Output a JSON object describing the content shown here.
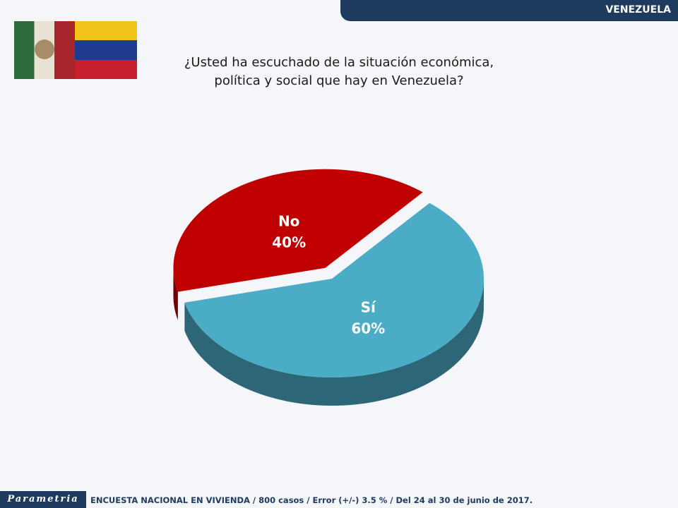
{
  "header": {
    "country": "VENEZUELA"
  },
  "footer": {
    "brand": "Parametria",
    "note": "ENCUESTA NACIONAL EN VIVIENDA / 800 casos / Error (+/-) 3.5 % / Del 24 al 30 de junio de 2017."
  },
  "chart_data": {
    "type": "pie",
    "title": "¿Usted ha escuchado de la situación económica, política y social que hay en Venezuela?",
    "categories": [
      "No",
      "Sí"
    ],
    "values": [
      40,
      60
    ],
    "value_labels": [
      "40%",
      "60%"
    ],
    "colors": [
      "#c00000",
      "#4bacc6"
    ]
  }
}
